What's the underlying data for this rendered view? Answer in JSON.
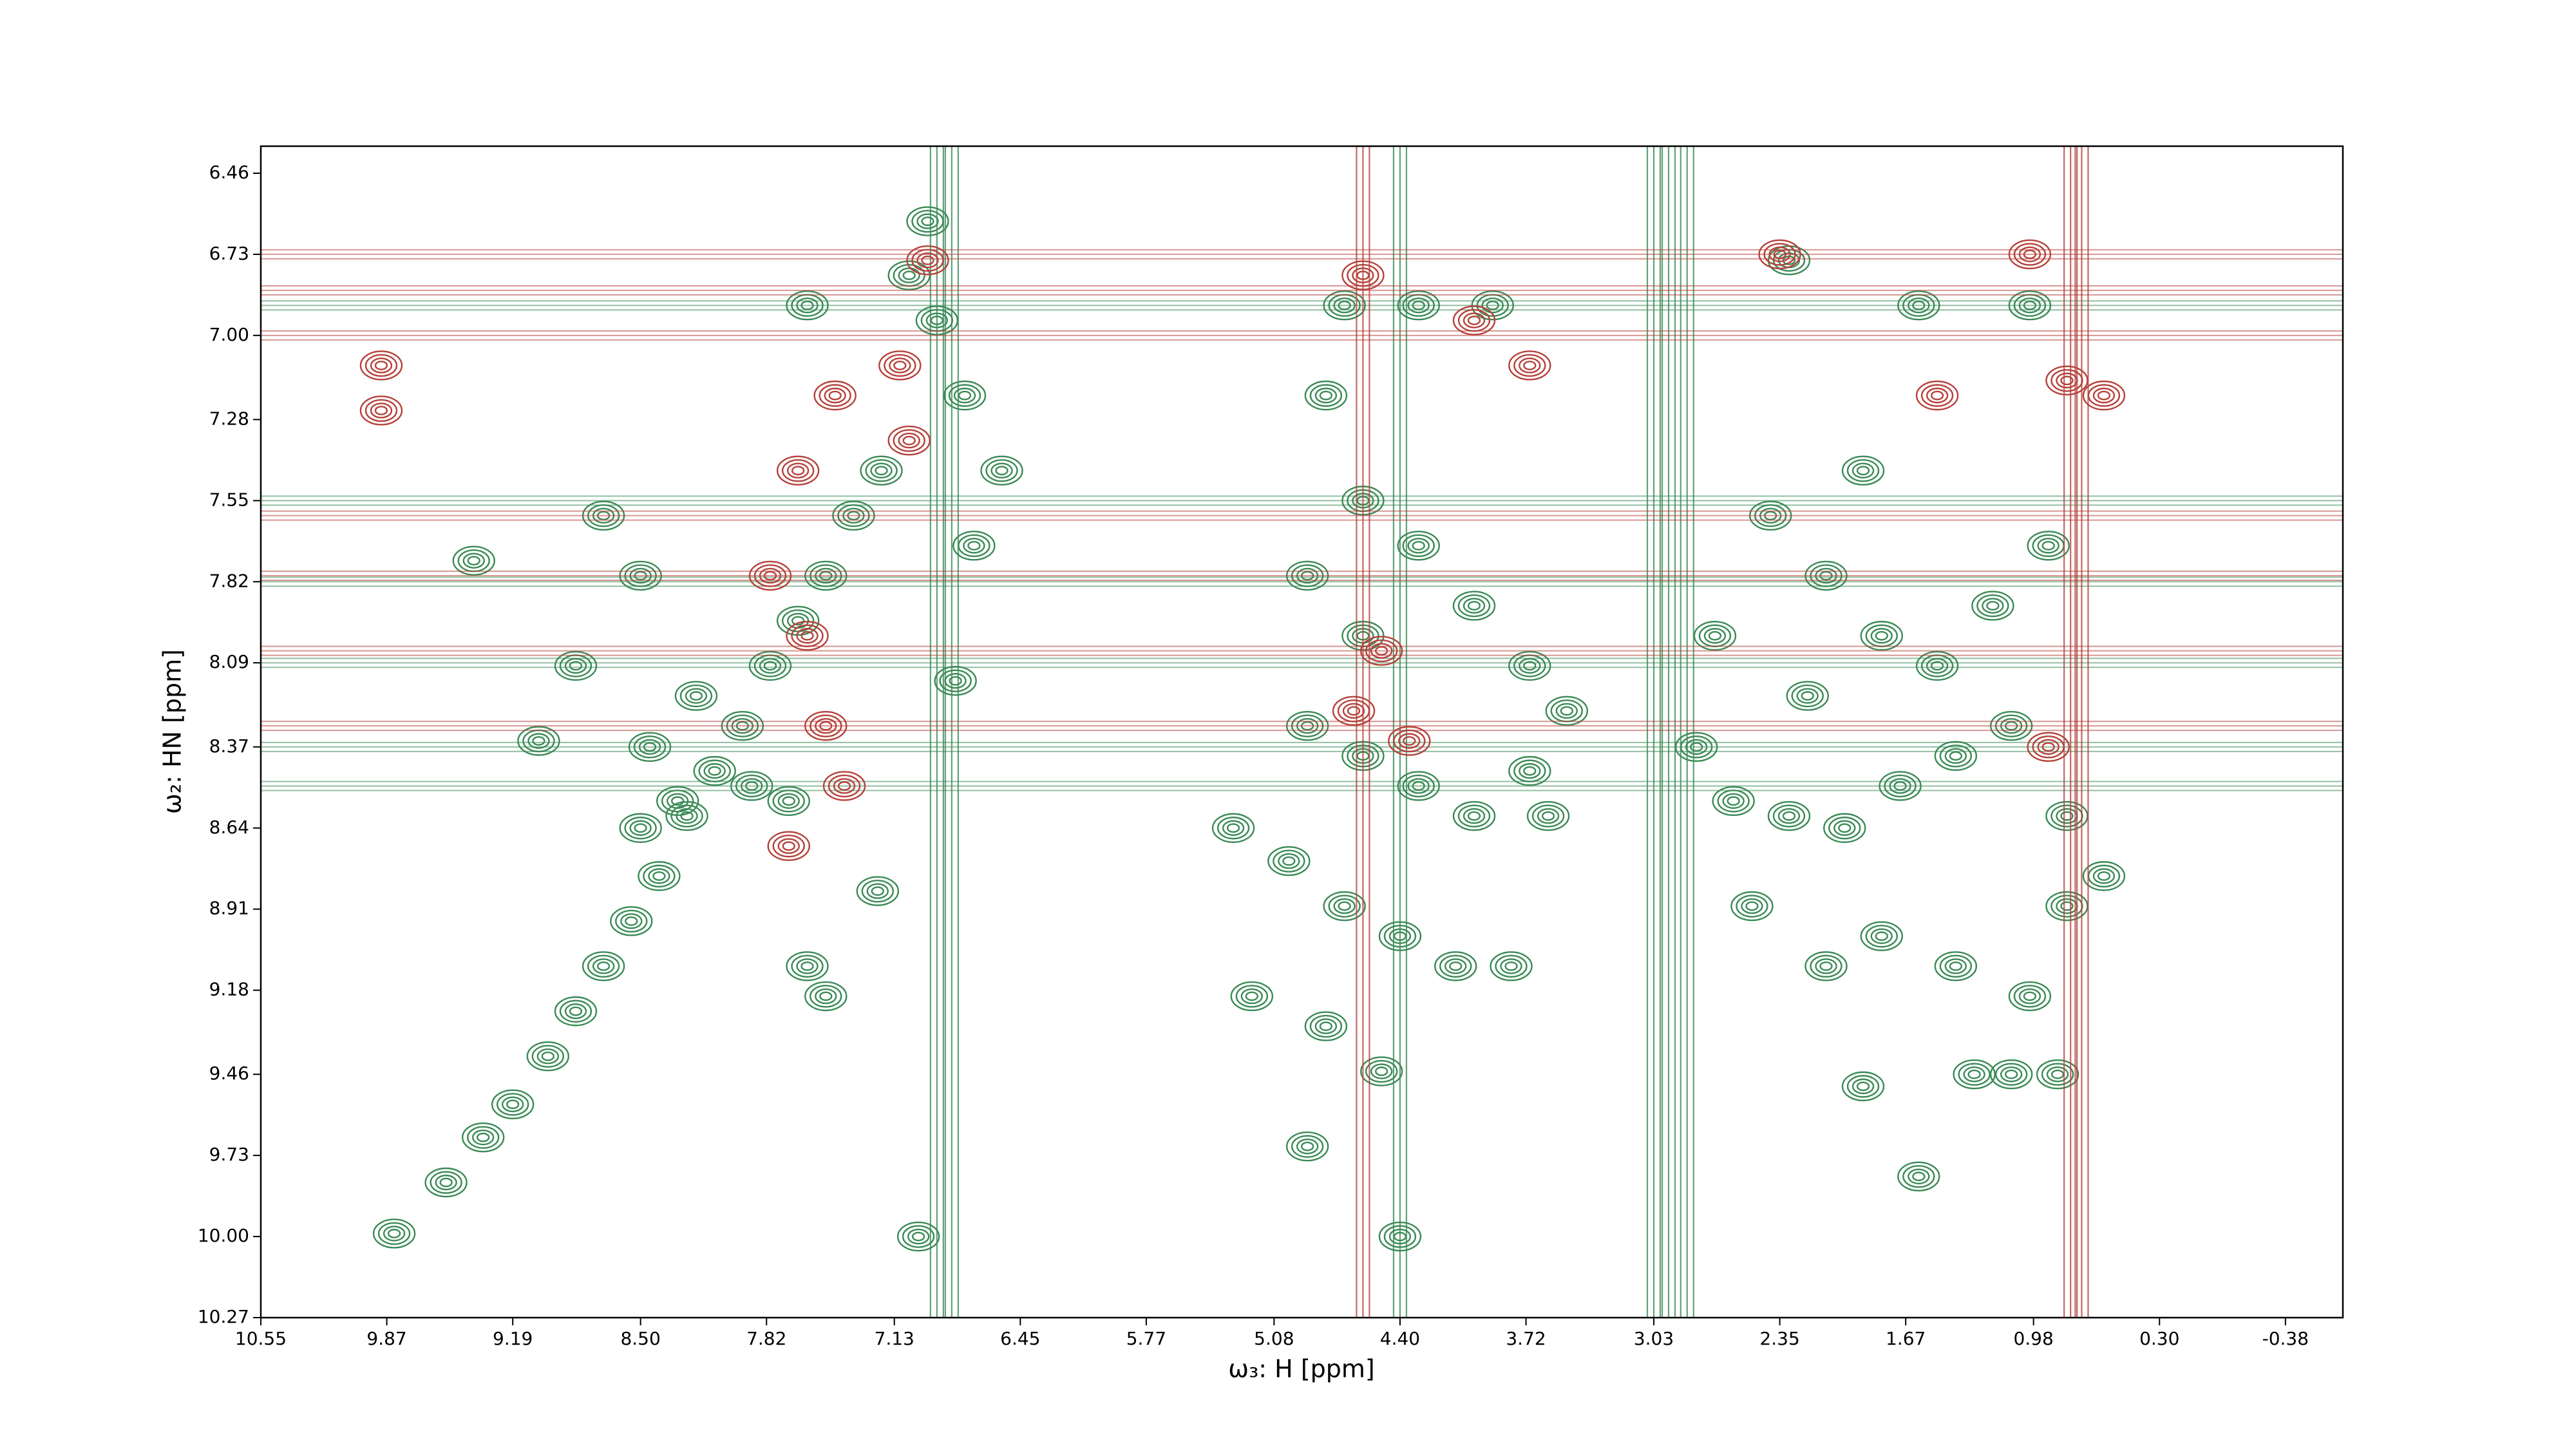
{
  "chart_data": {
    "type": "contour",
    "x_label": "ω₃: H [ppm]",
    "y_label": "ω₂: HN [ppm]",
    "xlim": [
      10.55,
      -0.69
    ],
    "ylim": [
      10.27,
      6.37
    ],
    "xticks": [
      10.55,
      9.87,
      9.19,
      {
        "value": 8.5,
        "label": "8.50"
      },
      7.82,
      7.13,
      6.45,
      5.77,
      5.08,
      {
        "value": 4.4,
        "label": "4.40"
      },
      3.72,
      3.03,
      2.35,
      1.67,
      0.98,
      {
        "value": 0.3,
        "label": "0.30"
      },
      -0.38
    ],
    "yticks": [
      6.46,
      6.73,
      {
        "value": 7,
        "label": "7.00"
      },
      7.28,
      7.55,
      7.82,
      8.09,
      8.37,
      8.64,
      8.91,
      9.18,
      9.46,
      9.73,
      {
        "value": 10,
        "label": "10.00"
      },
      10.27
    ],
    "series": [
      {
        "color": "#3a8a55",
        "x": [
          9.83,
          9.55,
          9.35,
          9.19,
          9.0,
          8.85,
          8.7,
          8.55,
          8.4,
          8.25,
          8.1,
          7.95,
          7.8,
          7.65,
          7.5,
          7.35,
          7.2,
          8.5,
          8.3,
          7.9,
          7.7,
          8.45,
          8.2,
          8.7,
          8.5,
          7.6,
          7.05,
          6.9,
          6.75,
          6.55,
          6.7,
          6.95,
          7.22,
          7.0,
          7.6,
          9.05,
          8.85,
          9.4,
          6.8,
          7.5,
          4.9,
          4.6,
          4.3,
          4.0,
          3.7,
          5.3,
          5.0,
          4.7,
          4.4,
          4.1,
          3.8,
          4.8,
          4.5,
          4.9,
          4.6,
          4.3,
          4.0,
          3.7,
          4.9,
          4.6,
          3.5,
          3.6,
          5.2,
          4.4,
          4.7,
          4.3,
          3.9,
          4.8,
          2.8,
          2.6,
          2.3,
          2.0,
          1.7,
          1.4,
          1.1,
          0.8,
          2.4,
          2.1,
          1.8,
          1.5,
          1.2,
          0.9,
          2.5,
          2.1,
          1.8,
          1.4,
          1.0,
          0.85,
          1.3,
          1.6,
          1.1,
          2.2,
          2.7,
          1.9,
          1.0,
          1.6,
          2.3,
          0.6,
          1.9,
          0.8
        ],
        "y": [
          9.99,
          9.82,
          9.67,
          9.56,
          9.4,
          9.25,
          9.1,
          8.95,
          8.8,
          8.6,
          8.45,
          8.3,
          8.1,
          7.95,
          7.8,
          7.6,
          7.45,
          8.64,
          8.55,
          8.5,
          8.55,
          8.37,
          8.2,
          7.6,
          7.8,
          6.9,
          6.8,
          6.95,
          7.2,
          7.45,
          7.7,
          6.62,
          8.85,
          10.0,
          9.1,
          8.35,
          8.1,
          7.75,
          8.15,
          9.2,
          8.3,
          8.4,
          8.5,
          8.6,
          8.45,
          8.64,
          8.75,
          8.9,
          9.0,
          9.1,
          9.1,
          9.3,
          9.45,
          9.7,
          7.55,
          7.7,
          7.9,
          8.1,
          7.8,
          8.0,
          8.25,
          8.6,
          9.2,
          10.0,
          6.9,
          6.9,
          6.9,
          7.2,
          8.37,
          8.55,
          8.6,
          8.64,
          8.5,
          8.4,
          8.3,
          8.6,
          7.6,
          7.8,
          8.0,
          8.1,
          7.9,
          7.7,
          8.9,
          9.1,
          9.0,
          9.1,
          9.2,
          9.46,
          9.46,
          9.8,
          9.46,
          8.2,
          8.0,
          7.45,
          6.9,
          6.9,
          6.75,
          8.8,
          9.5,
          8.9
        ],
        "x_lines": [
          3.03,
          2.95,
          2.85,
          6.82,
          6.9,
          4.4
        ],
        "y_lines": [
          6.9,
          7.55,
          7.82,
          8.09,
          8.37,
          8.5
        ]
      },
      {
        "color": "#b5413a",
        "x": [
          7.8,
          7.6,
          7.5,
          7.65,
          7.45,
          7.1,
          6.95,
          7.05,
          7.7,
          9.9,
          9.9,
          4.5,
          4.65,
          4.35,
          3.7,
          4.0,
          2.35,
          1.0,
          0.8,
          1.5,
          0.6,
          4.6,
          0.9,
          7.4
        ],
        "y": [
          7.8,
          8.0,
          8.3,
          7.45,
          7.2,
          7.1,
          6.75,
          7.35,
          8.7,
          7.1,
          7.25,
          8.05,
          8.25,
          8.35,
          7.1,
          6.95,
          6.73,
          6.73,
          7.15,
          7.2,
          7.2,
          6.8,
          8.37,
          8.5
        ],
        "x_lines": [
          0.78,
          0.72,
          4.6
        ],
        "y_lines": [
          6.73,
          6.85,
          7.0,
          7.8,
          8.05,
          8.3,
          7.6
        ]
      }
    ]
  }
}
